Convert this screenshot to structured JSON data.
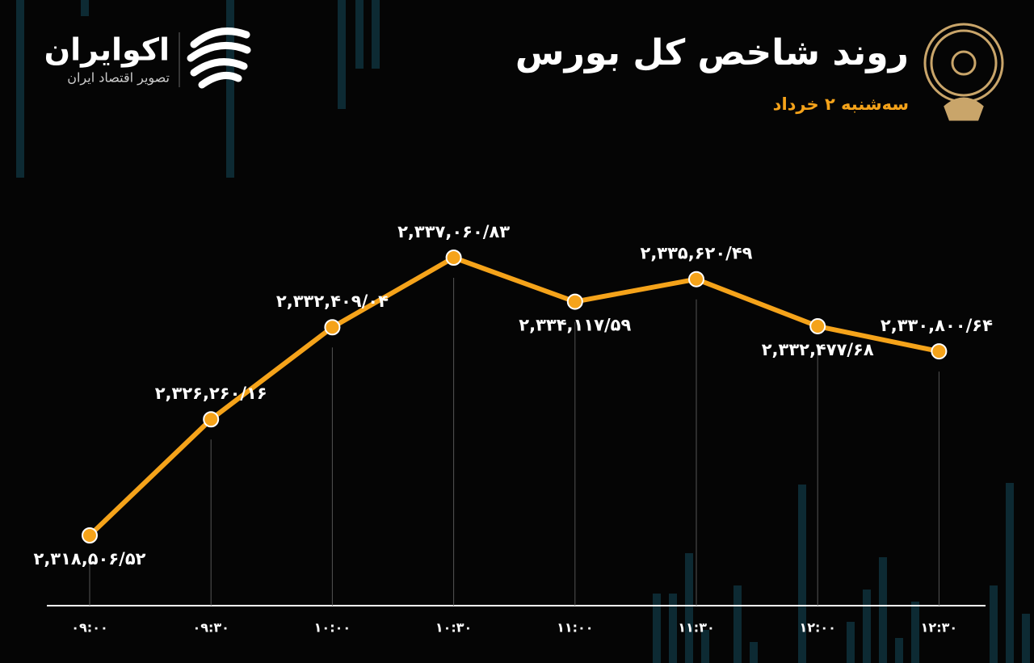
{
  "header": {
    "brand": "اکوایران",
    "tagline": "تصویر اقتصاد ایران"
  },
  "chart_data": {
    "type": "line",
    "title": "روند شاخص کل بورس",
    "subtitle": "سه‌شنبه ۲ خرداد",
    "categories": [
      "۰۹:۰۰",
      "۰۹:۳۰",
      "۱۰:۰۰",
      "۱۰:۳۰",
      "۱۱:۰۰",
      "۱۱:۳۰",
      "۱۲:۰۰",
      "۱۲:۳۰"
    ],
    "series": [
      {
        "color": "#f5a31a",
        "values": [
          2318506.52,
          2326260.16,
          2332409.04,
          2337060.83,
          2334117.59,
          2335620.49,
          2332477.68,
          2330800.64
        ],
        "value_labels": [
          "۲,۳۱۸,۵۰۶/۵۲",
          "۲,۳۲۶,۲۶۰/۱۶",
          "۲,۳۳۲,۴۰۹/۰۴",
          "۲,۳۳۷,۰۶۰/۸۳",
          "۲,۳۳۴,۱۱۷/۵۹",
          "۲,۳۳۵,۶۲۰/۴۹",
          "۲,۳۳۲,۴۷۷/۶۸",
          "۲,۳۳۰,۸۰۰/۶۴"
        ]
      }
    ]
  }
}
